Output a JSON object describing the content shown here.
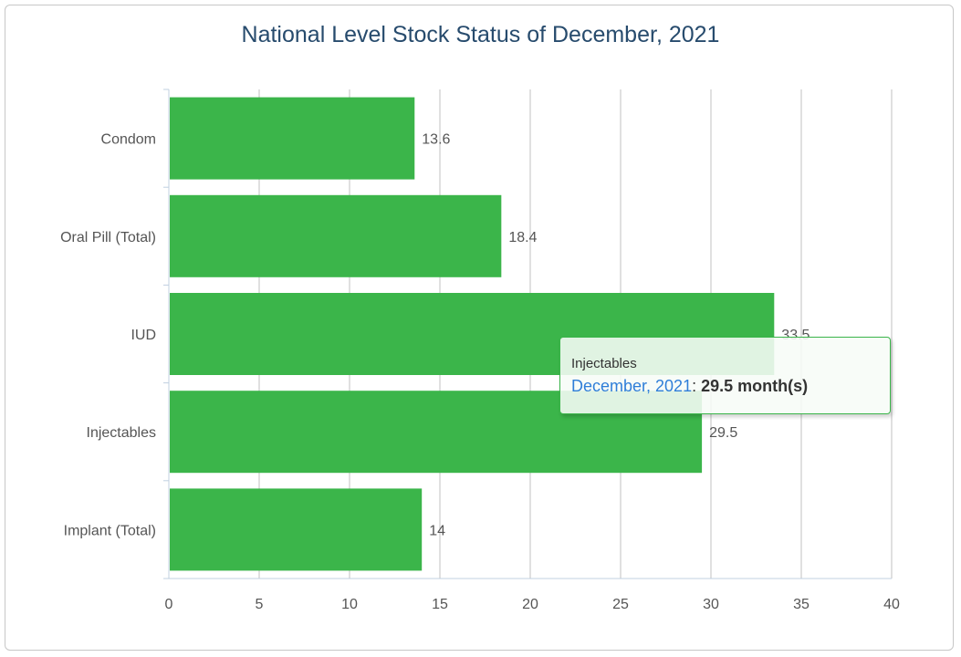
{
  "chart_data": {
    "type": "bar",
    "orientation": "horizontal",
    "title": "National Level Stock Status of December, 2021",
    "categories": [
      "Condom",
      "Oral Pill (Total)",
      "IUD",
      "Injectables",
      "Implant (Total)"
    ],
    "series": [
      {
        "name": "December, 2021",
        "values": [
          13.6,
          18.4,
          33.5,
          29.5,
          14
        ]
      }
    ],
    "data_labels": [
      "13.6",
      "18.4",
      "33.5",
      "29.5",
      "14"
    ],
    "xlim": [
      0,
      40
    ],
    "x_ticks": [
      0,
      5,
      10,
      15,
      20,
      25,
      30,
      35,
      40
    ],
    "grid": true,
    "bar_color": "#3bb54a"
  },
  "tooltip": {
    "category": "Injectables",
    "series_name": "December, 2021",
    "separator": ": ",
    "value_text": "29.5 month(s)"
  }
}
